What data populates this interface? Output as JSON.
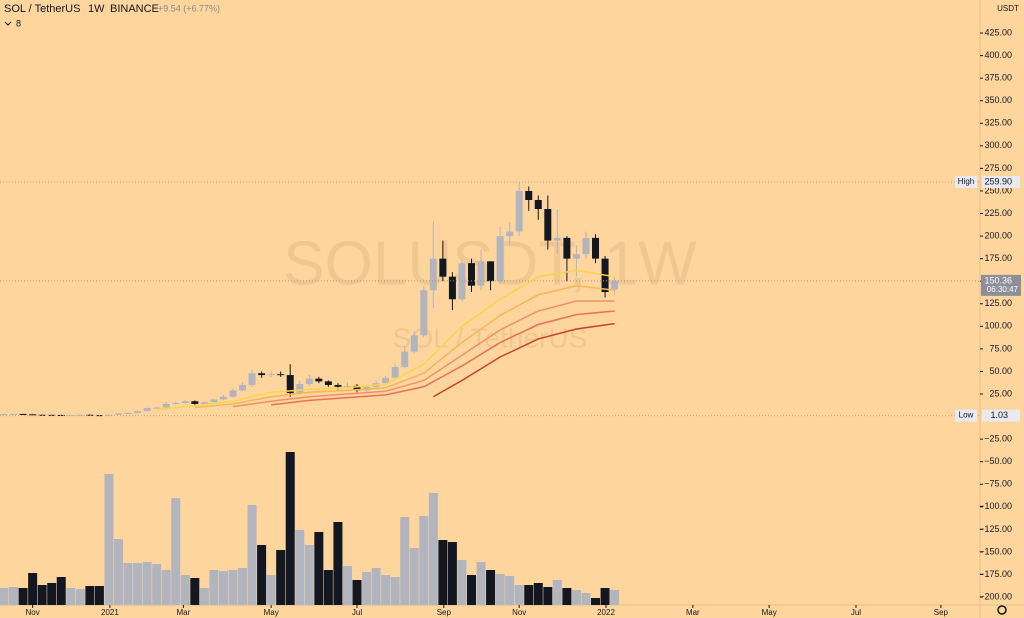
{
  "chart_data": {
    "type": "candlestick",
    "title": "SOL / TetherUS",
    "interval": "1W",
    "exchange": "BINANCE",
    "change": "+9.54 (+6.77%)",
    "indicator_count": 8,
    "watermark": "SOLUSDT, 1W",
    "watermark_subtitle": "SOL / TetherUS",
    "currency": "USDT",
    "up_color": "#b2b5be",
    "down_color": "#131722",
    "open": [
      2.7,
      2.8,
      2.9,
      2.5,
      2.0,
      1.9,
      1.8,
      1.6,
      1.7,
      2.0,
      1.6,
      1.5,
      2.0,
      3.5,
      4.0,
      6.0,
      9.5,
      10,
      14,
      15,
      17,
      14,
      16,
      19,
      22,
      29,
      35,
      48,
      46,
      47,
      46,
      26,
      36,
      42,
      39,
      35,
      33,
      34,
      29,
      33,
      37,
      43,
      55,
      72,
      90,
      140,
      175,
      155,
      130,
      170,
      145,
      172,
      150,
      200,
      205,
      250,
      240,
      230,
      195,
      198,
      175,
      180,
      198,
      175,
      140.82
    ],
    "high": [
      3.0,
      3.1,
      3.0,
      2.6,
      2.1,
      2.0,
      1.9,
      1.8,
      2.2,
      2.1,
      1.7,
      2.2,
      3.8,
      4.5,
      6.5,
      10,
      11,
      16,
      17,
      18,
      18,
      17,
      20,
      24,
      31,
      38,
      52,
      50,
      50,
      50,
      58,
      40,
      46,
      44,
      40,
      37,
      38,
      36,
      35,
      40,
      45,
      58,
      78,
      95,
      145,
      216,
      195,
      160,
      172,
      175,
      185,
      172,
      210,
      215,
      259.9,
      255,
      245,
      245,
      230,
      200,
      190,
      205,
      202,
      178,
      155
    ],
    "low": [
      2.5,
      2.6,
      2.3,
      1.8,
      1.7,
      1.6,
      1.4,
      1.5,
      1.6,
      1.4,
      1.03,
      1.4,
      1.9,
      3.3,
      3.8,
      5.8,
      8.8,
      9.5,
      13,
      14,
      13,
      13,
      15,
      18,
      21,
      28,
      33,
      43,
      44,
      44,
      22,
      24,
      34,
      37,
      33,
      30,
      31,
      27,
      26,
      31,
      35,
      42,
      54,
      70,
      88,
      120,
      150,
      118,
      128,
      138,
      140,
      140,
      148,
      190,
      200,
      228,
      218,
      185,
      180,
      150,
      155,
      175,
      170,
      132,
      135
    ],
    "close": [
      2.8,
      2.9,
      2.5,
      2.0,
      1.9,
      1.8,
      1.6,
      1.7,
      2.0,
      1.6,
      1.5,
      2.0,
      3.5,
      4.0,
      6.0,
      9.5,
      10,
      14,
      15,
      17,
      14,
      16,
      19,
      22,
      29,
      35,
      48,
      46,
      47,
      46,
      26,
      36,
      42,
      39,
      35,
      33,
      34,
      29,
      33,
      37,
      43,
      55,
      72,
      90,
      140,
      175,
      155,
      130,
      170,
      145,
      172,
      150,
      200,
      205,
      250,
      240,
      230,
      195,
      198,
      175,
      180,
      198,
      175,
      138,
      150.36
    ],
    "volume": [
      17,
      18,
      17,
      32,
      20,
      22,
      28,
      17,
      16,
      19,
      19,
      131,
      66,
      42,
      42,
      43,
      41,
      35,
      107,
      30,
      27,
      17,
      35,
      34,
      35,
      37,
      100,
      60,
      30,
      55,
      153,
      75,
      60,
      73,
      35,
      83,
      39,
      25,
      33,
      37,
      30,
      28,
      88,
      57,
      89,
      112,
      65,
      63,
      45,
      30,
      43,
      35,
      31,
      29,
      20,
      20,
      22,
      18,
      25,
      17,
      15,
      12,
      7,
      17,
      15
    ],
    "ribbons": [
      {
        "color": "#f7d64a",
        "x": [
          16,
          20,
          24,
          28,
          32,
          36,
          40,
          44,
          48,
          52,
          56,
          60,
          64
        ],
        "values": [
          8,
          12,
          17,
          27,
          30,
          32,
          36,
          58,
          100,
          130,
          155,
          162,
          155
        ]
      },
      {
        "color": "#f5b65a",
        "x": [
          20,
          24,
          28,
          32,
          36,
          40,
          44,
          48,
          52,
          56,
          60,
          64
        ],
        "values": [
          10,
          14,
          22,
          27,
          29,
          32,
          48,
          82,
          112,
          135,
          145,
          140
        ]
      },
      {
        "color": "#f0906a",
        "x": [
          24,
          28,
          32,
          36,
          40,
          44,
          48,
          52,
          56,
          60,
          64
        ],
        "values": [
          11,
          17,
          22,
          25,
          28,
          40,
          68,
          96,
          117,
          128,
          128
        ]
      },
      {
        "color": "#e8705a",
        "x": [
          28,
          32,
          36,
          40,
          44,
          48,
          52,
          56,
          60,
          64
        ],
        "values": [
          13,
          18,
          21,
          24,
          33,
          56,
          82,
          102,
          113,
          117
        ]
      },
      {
        "color": "#c84030",
        "x": [
          45,
          48,
          52,
          56,
          60,
          64
        ],
        "values": [
          22,
          40,
          66,
          86,
          97,
          103
        ]
      }
    ],
    "ylim": [
      -208.8,
      461.6
    ],
    "yticks": [
      {
        "value": 425,
        "label": "425.00"
      },
      {
        "value": 400,
        "label": "400.00"
      },
      {
        "value": 375,
        "label": "375.00"
      },
      {
        "value": 350,
        "label": "350.00"
      },
      {
        "value": 325,
        "label": "325.00"
      },
      {
        "value": 300,
        "label": "300.00"
      },
      {
        "value": 275,
        "label": "275.00"
      },
      {
        "value": 250,
        "label": "250.00"
      },
      {
        "value": 225,
        "label": "225.00"
      },
      {
        "value": 200,
        "label": "200.00"
      },
      {
        "value": 175,
        "label": "175.00"
      },
      {
        "value": 150,
        "label": "150.00"
      },
      {
        "value": 125,
        "label": "125.00"
      },
      {
        "value": 100,
        "label": "100.00"
      },
      {
        "value": 75,
        "label": "75.00"
      },
      {
        "value": 50,
        "label": "50.00"
      },
      {
        "value": 25,
        "label": "25.00"
      },
      {
        "value": -25,
        "label": "−25.00"
      },
      {
        "value": -50,
        "label": "−50.00"
      },
      {
        "value": -75,
        "label": "−75.00"
      },
      {
        "value": -100,
        "label": "−100.00"
      },
      {
        "value": -125,
        "label": "−125.00"
      },
      {
        "value": -150,
        "label": "−150.00"
      },
      {
        "value": -175,
        "label": "−175.00"
      },
      {
        "value": -200,
        "label": "−200.00"
      }
    ],
    "xlim": [
      -0.42,
      102.3
    ],
    "xticks": [
      {
        "value": 3.0,
        "label": "Nov"
      },
      {
        "value": 11.1,
        "label": "2021"
      },
      {
        "value": 18.8,
        "label": "Mar"
      },
      {
        "value": 28,
        "label": "May"
      },
      {
        "value": 37,
        "label": "Jul"
      },
      {
        "value": 46.1,
        "label": "Sep"
      },
      {
        "value": 54,
        "label": "Nov"
      },
      {
        "value": 63.1,
        "label": "2022"
      },
      {
        "value": 72.2,
        "label": "Mar"
      },
      {
        "value": 80.2,
        "label": "May"
      },
      {
        "value": 89.3,
        "label": "Jul"
      },
      {
        "value": 98.2,
        "label": "Sep"
      }
    ],
    "high_marker": {
      "label": "High",
      "value": 259.9,
      "value_label": "259.90"
    },
    "low_marker": {
      "label": "Low",
      "value": 1.03
    },
    "last_price": {
      "value": 150.36,
      "countdown": "06:30:47"
    }
  }
}
